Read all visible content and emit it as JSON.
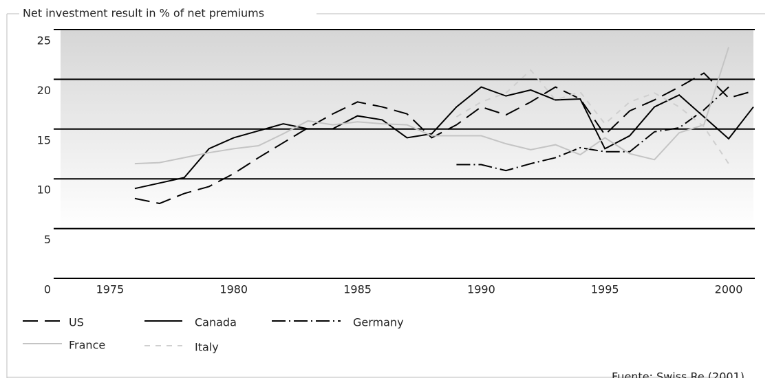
{
  "chart_data": {
    "type": "line",
    "title": "Net investment result in % of net premiums",
    "source": "Fuente: Swiss Re (2001)",
    "xlim": [
      1973,
      2001
    ],
    "xticks": [
      1975,
      1980,
      1985,
      1990,
      1995,
      2000
    ],
    "ylim": [
      0,
      25
    ],
    "yticks": [
      0,
      5,
      10,
      15,
      20,
      25
    ],
    "grid": true,
    "series": [
      {
        "name": "US",
        "color": "#000000",
        "dash": "22,10",
        "width": 2,
        "x": [
          1976,
          1977,
          1978,
          1979,
          1980,
          1981,
          1982,
          1983,
          1984,
          1985,
          1986,
          1987,
          1988,
          1989,
          1990,
          1991,
          1992,
          1993,
          1994,
          1995,
          1996,
          1997,
          1998,
          1999,
          2000,
          2001
        ],
        "values": [
          9.2,
          8.7,
          9.7,
          10.4,
          11.7,
          13.3,
          14.8,
          16.3,
          17.7,
          18.9,
          18.4,
          17.7,
          15.3,
          16.6,
          18.4,
          17.6,
          18.9,
          20.4,
          19.2,
          15.6,
          18,
          19.1,
          20.4,
          21.8,
          19.3,
          20
        ]
      },
      {
        "name": "Canada",
        "color": "#000000",
        "dash": "none",
        "width": 2,
        "x": [
          1976,
          1978,
          1979,
          1980,
          1981,
          1982,
          1983,
          1984,
          1985,
          1986,
          1987,
          1988,
          1989,
          1990,
          1991,
          1992,
          1993,
          1994,
          1995,
          1996,
          1997,
          1998,
          1999,
          2000,
          2001
        ],
        "values": [
          10.2,
          11.3,
          14.2,
          15.3,
          16,
          16.7,
          16.2,
          16.2,
          17.5,
          17.1,
          15.3,
          15.7,
          18.4,
          20.4,
          19.5,
          20.1,
          19.1,
          19.2,
          14.2,
          15.5,
          18.4,
          19.6,
          17.4,
          15.2,
          18.4
        ]
      },
      {
        "name": "Germany",
        "color": "#000000",
        "dash": "20,5,2,5",
        "width": 2,
        "x": [
          1989,
          1990,
          1991,
          1992,
          1993,
          1994,
          1995,
          1996,
          1997,
          1998,
          1999,
          2000
        ],
        "values": [
          12.6,
          12.6,
          12,
          12.7,
          13.3,
          14.3,
          13.9,
          13.9,
          15.9,
          16.3,
          18.1,
          20.4
        ]
      },
      {
        "name": "France",
        "color": "#c4c4c4",
        "dash": "none",
        "width": 2,
        "x": [
          1976,
          1977,
          1978,
          1979,
          1980,
          1981,
          1982,
          1983,
          1984,
          1985,
          1986,
          1987,
          1988,
          1989,
          1990,
          1991,
          1992,
          1993,
          1994,
          1995,
          1996,
          1997,
          1998,
          1999,
          2000
        ],
        "values": [
          12.7,
          12.8,
          13.3,
          13.8,
          14.2,
          14.5,
          15.7,
          17,
          16.6,
          16.9,
          16.7,
          16.6,
          15.5,
          15.5,
          15.5,
          14.7,
          14.1,
          14.6,
          13.6,
          15.3,
          13.7,
          13.1,
          15.8,
          16.6,
          24.4
        ]
      },
      {
        "name": "Italy",
        "color": "#cfcfcf",
        "dash": "8,8",
        "width": 2,
        "x": [
          1989,
          1990,
          1991,
          1992,
          1993,
          1994,
          1995,
          1996,
          1997,
          1998,
          1999,
          2000
        ],
        "values": [
          17.4,
          18.9,
          19.8,
          22.1,
          19.1,
          19.9,
          16.7,
          18.9,
          19.8,
          18.4,
          16.4,
          12.7
        ]
      }
    ]
  }
}
